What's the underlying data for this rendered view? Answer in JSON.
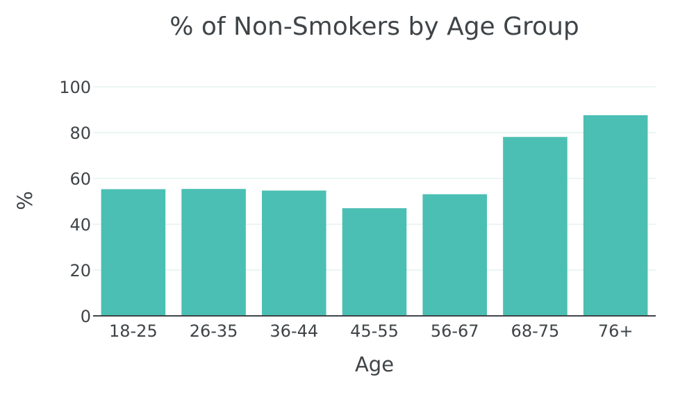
{
  "chart_data": {
    "type": "bar",
    "title": "% of Non-Smokers by Age Group",
    "xlabel": "Age",
    "ylabel": "%",
    "categories": [
      "18-25",
      "26-35",
      "36-44",
      "45-55",
      "56-67",
      "68-75",
      "76+"
    ],
    "values": [
      55.3,
      55.4,
      54.7,
      47.0,
      53.1,
      78.1,
      87.6
    ],
    "ylim": [
      0,
      100
    ],
    "yticks": [
      0,
      20,
      40,
      60,
      80,
      100
    ],
    "grid": true,
    "legend": "none",
    "bar_color": "#4bbfb3"
  }
}
